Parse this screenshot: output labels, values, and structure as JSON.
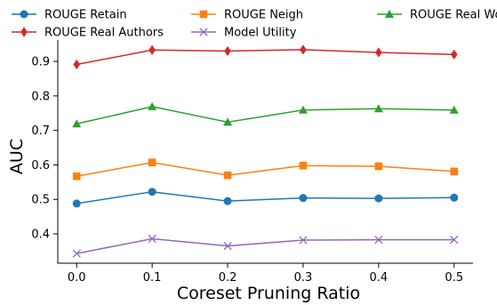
{
  "chart_data": {
    "type": "line",
    "xlabel": "Coreset Pruning Ratio",
    "ylabel": "AUC",
    "x": [
      0.0,
      0.1,
      0.2,
      0.3,
      0.4,
      0.5
    ],
    "x_ticks": [
      "0.0",
      "0.1",
      "0.2",
      "0.3",
      "0.4",
      "0.5"
    ],
    "y_ticks": [
      "0.4",
      "0.5",
      "0.6",
      "0.7",
      "0.8",
      "0.9"
    ],
    "xlim": [
      -0.025,
      0.525
    ],
    "ylim": [
      0.315,
      0.962
    ],
    "grid": false,
    "legend_position": "top",
    "series": [
      {
        "name": "ROUGE Retain",
        "color": "#1f77b4",
        "marker": "circle",
        "values": [
          0.488,
          0.522,
          0.495,
          0.504,
          0.503,
          0.505
        ]
      },
      {
        "name": "ROUGE Neigh",
        "color": "#ff7f0e",
        "marker": "square",
        "values": [
          0.567,
          0.607,
          0.57,
          0.598,
          0.596,
          0.581
        ]
      },
      {
        "name": "ROUGE Real World",
        "color": "#2ca02c",
        "marker": "triangle",
        "values": [
          0.719,
          0.769,
          0.724,
          0.759,
          0.763,
          0.759
        ]
      },
      {
        "name": "ROUGE Real Authors",
        "color": "#d62728",
        "marker": "diamond",
        "values": [
          0.891,
          0.933,
          0.93,
          0.934,
          0.926,
          0.92
        ]
      },
      {
        "name": "Model Utility",
        "color": "#9467bd",
        "marker": "x",
        "values": [
          0.343,
          0.386,
          0.365,
          0.382,
          0.383,
          0.383
        ]
      }
    ]
  }
}
